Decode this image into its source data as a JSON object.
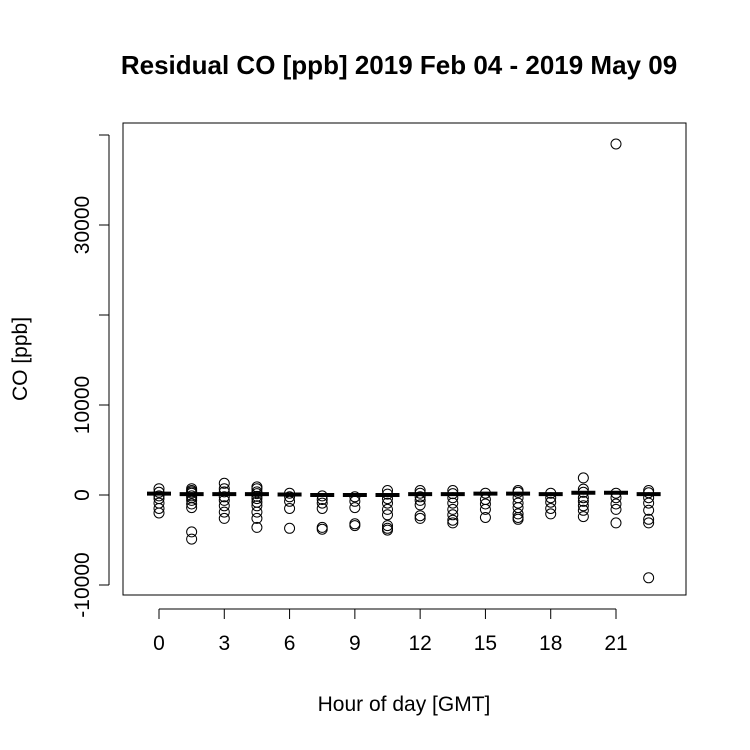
{
  "chart_data": {
    "type": "boxplot",
    "title": "Residual CO [ppb] 2019 Feb 04 - 2019 May 09",
    "xlabel": "Hour of day [GMT]",
    "ylabel": "CO [ppb]",
    "ylim": [
      -11000,
      40000
    ],
    "y_ticks": [
      -10000,
      0,
      10000,
      30000
    ],
    "y_tick_labels": [
      "-10000",
      "0",
      "10000",
      "30000"
    ],
    "y_ticks_unlabeled": [
      20000,
      40000
    ],
    "x_tick_labels": [
      "0",
      "3",
      "6",
      "9",
      "12",
      "15",
      "18",
      "21"
    ],
    "x_tick_hours": [
      0,
      3,
      6,
      9,
      12,
      15,
      18,
      21
    ],
    "grid": false,
    "boxes": [
      {
        "hour": 0,
        "median": 150,
        "outliers": [
          700,
          300,
          -100,
          -400,
          -900,
          -1500,
          -2000
        ]
      },
      {
        "hour": 1.5,
        "median": 100,
        "outliers": [
          700,
          500,
          350,
          200,
          -100,
          -300,
          -600,
          -1000,
          -1400,
          -4100,
          -4900
        ]
      },
      {
        "hour": 3,
        "median": 100,
        "outliers": [
          1300,
          700,
          350,
          -200,
          -600,
          -1200,
          -1900,
          -2600
        ]
      },
      {
        "hour": 4.5,
        "median": 100,
        "outliers": [
          900,
          700,
          350,
          150,
          -150,
          -400,
          -800,
          -1200,
          -1900,
          -2600,
          -3600
        ]
      },
      {
        "hour": 6,
        "median": 50,
        "outliers": [
          200,
          -200,
          -700,
          -1500,
          -3700
        ]
      },
      {
        "hour": 7.5,
        "median": 0,
        "outliers": [
          -100,
          -500,
          -900,
          -1500,
          -3600,
          -3800
        ]
      },
      {
        "hour": 9,
        "median": 0,
        "outliers": [
          -200,
          -700,
          -1400,
          -3200,
          -3400
        ]
      },
      {
        "hour": 10.5,
        "median": 0,
        "outliers": [
          500,
          100,
          -400,
          -900,
          -1600,
          -2200,
          -3400,
          -3700,
          -3900
        ]
      },
      {
        "hour": 12,
        "median": 100,
        "outliers": [
          500,
          200,
          -200,
          -600,
          -1100,
          -2300,
          -2600
        ]
      },
      {
        "hour": 13.5,
        "median": 100,
        "outliers": [
          500,
          150,
          -300,
          -900,
          -1600,
          -2200,
          -2800,
          -3100
        ]
      },
      {
        "hour": 15,
        "median": 150,
        "outliers": [
          200,
          -500,
          -1000,
          -1600,
          -2500
        ]
      },
      {
        "hour": 16.5,
        "median": 150,
        "outliers": [
          500,
          300,
          -300,
          -900,
          -1400,
          -2100,
          -2500,
          -2700
        ]
      },
      {
        "hour": 18,
        "median": 100,
        "outliers": [
          200,
          -300,
          -800,
          -1500,
          -2100
        ]
      },
      {
        "hour": 19.5,
        "median": 250,
        "outliers": [
          1900,
          650,
          300,
          -300,
          -700,
          -1200,
          -1700,
          -2400
        ]
      },
      {
        "hour": 21,
        "median": 250,
        "outliers": [
          39000,
          200,
          -300,
          -1000,
          -1600,
          -3100
        ]
      },
      {
        "hour": 22.5,
        "median": 100,
        "outliers": [
          500,
          250,
          -300,
          -900,
          -1700,
          -2700,
          -3100,
          -9200
        ]
      }
    ]
  }
}
